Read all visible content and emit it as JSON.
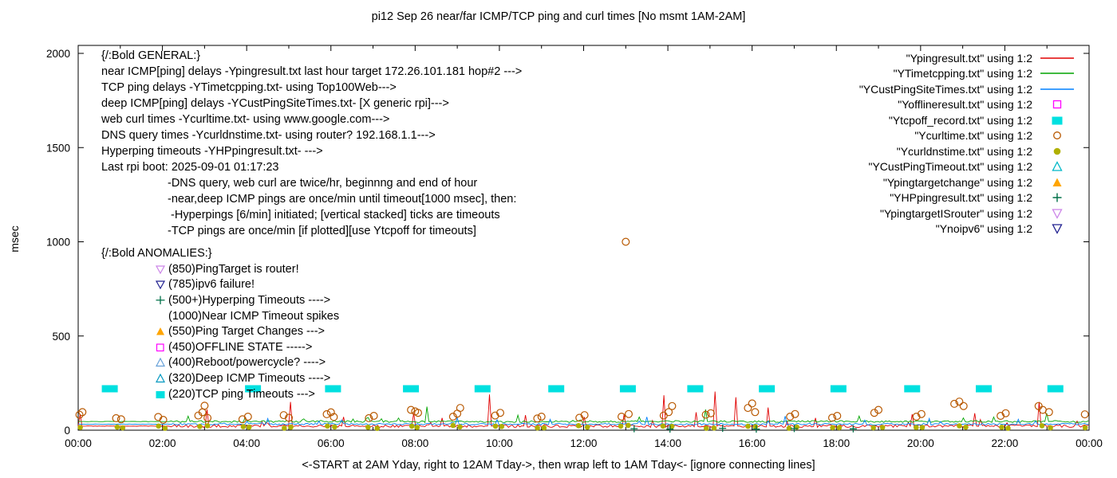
{
  "title": "pi12 Sep 26  near/far ICMP/TCP ping and curl times [No msmt 1AM-2AM]",
  "ylabel": "msec",
  "xlabel": "<-START at 2AM Yday, right to 12AM Tday->, then wrap left to 1AM Tday<- [ignore connecting lines]",
  "axes": {
    "yticks": [
      0,
      500,
      1000,
      1500,
      2000
    ],
    "xticks": [
      "00:00",
      "02:00",
      "04:00",
      "06:00",
      "08:00",
      "10:00",
      "12:00",
      "14:00",
      "16:00",
      "18:00",
      "20:00",
      "22:00",
      "00:00"
    ],
    "hours": 24,
    "grid": false
  },
  "legend": [
    {
      "label": "\"Ypingresult.txt\" using 1:2",
      "marker": "line",
      "color": "#e00000"
    },
    {
      "label": "\"YTimetcpping.txt\" using 1:2",
      "marker": "line",
      "color": "#00a400"
    },
    {
      "label": "\"YCustPingSiteTimes.txt\" using 1:2",
      "marker": "line",
      "color": "#0080ff"
    },
    {
      "label": "\"Yofflineresult.txt\" using 1:2",
      "marker": "square-open",
      "color": "#ff00ff"
    },
    {
      "label": "\"Ytcpoff_record.txt\" using 1:2",
      "marker": "square-filled",
      "color": "#00e0e0"
    },
    {
      "label": "\"Ycurltime.txt\" using 1:2",
      "marker": "circle-open",
      "color": "#b85800"
    },
    {
      "label": "\"Ycurldnstime.txt\" using 1:2",
      "marker": "circle-filled",
      "color": "#b0b000"
    },
    {
      "label": "\"YCustPingTimeout.txt\" using 1:2",
      "marker": "triangle-up-open",
      "color": "#00b8c8"
    },
    {
      "label": "\"Ypingtargetchange\" using 1:2",
      "marker": "triangle-up-filled",
      "color": "#ffa500"
    },
    {
      "label": "\"YHPpingresult.txt\" using 1:2",
      "marker": "plus",
      "color": "#007048"
    },
    {
      "label": "\"YpingtargetISrouter\" using 1:2",
      "marker": "triangle-down-open",
      "color": "#cc84e8"
    },
    {
      "label": "\"Ynoipv6\" using 1:2",
      "marker": "triangle-down-open",
      "color": "#202090"
    }
  ],
  "general": [
    {
      "text": "{/:Bold GENERAL:}",
      "indent": 0
    },
    {
      "text": "near ICMP[ping] delays -Ypingresult.txt last hour target 172.26.101.181 hop#2 --->",
      "indent": 0
    },
    {
      "text": "TCP ping delays -YTimetcpping.txt- using Top100Web--->",
      "indent": 0
    },
    {
      "text": "deep ICMP[ping] delays -YCustPingSiteTimes.txt- [X generic rpi]--->",
      "indent": 0
    },
    {
      "text": "web curl times -Ycurltime.txt- using www.google.com--->",
      "indent": 0
    },
    {
      "text": "DNS query times -Ycurldnstime.txt- using router? 192.168.1.1--->",
      "indent": 0
    },
    {
      "text": "Hyperping timeouts -YHPpingresult.txt- --->",
      "indent": 0
    },
    {
      "text": "Last rpi boot: 2025-09-01 01:17:23",
      "indent": 0
    },
    {
      "text": "-DNS query, web curl are twice/hr, beginnng and end of hour",
      "indent": 1
    },
    {
      "text": "-near,deep ICMP pings are once/min until timeout[1000 msec], then:",
      "indent": 1
    },
    {
      "text": " -Hyperpings [6/min] initiated; [vertical stacked] ticks are timeouts",
      "indent": 1
    },
    {
      "text": "-TCP pings are once/min [if plotted][use Ytcpoff for timeouts]",
      "indent": 1
    }
  ],
  "anomalies": {
    "heading": "{/:Bold ANOMALIES:}",
    "items": [
      {
        "marker": "triangle-down-open",
        "color": "#cc84e8",
        "text": "(850)PingTarget is router!"
      },
      {
        "marker": "triangle-down-open",
        "color": "#202090",
        "text": "(785)ipv6 failure!"
      },
      {
        "marker": "plus",
        "color": "#007048",
        "text": "(500+)Hyperping Timeouts ---->"
      },
      {
        "marker": "none",
        "color": "",
        "text": "(1000)Near ICMP Timeout spikes"
      },
      {
        "marker": "triangle-up-filled",
        "color": "#ffa500",
        "text": "(550)Ping Target Changes --->"
      },
      {
        "marker": "square-open",
        "color": "#ff00ff",
        "text": "(450)OFFLINE STATE ----->"
      },
      {
        "marker": "triangle-up-open",
        "color": "#66a0d8",
        "text": "(400)Reboot/powercycle? ---->"
      },
      {
        "marker": "triangle-up-open",
        "color": "#0098c0",
        "text": "(320)Deep ICMP Timeouts ---->"
      },
      {
        "marker": "square-filled",
        "color": "#00e0e0",
        "text": "(220)TCP ping Timeouts --->"
      }
    ]
  },
  "chart_data": {
    "type": "line+scatter",
    "x_unit": "hours_0_to_24",
    "ylim": [
      0,
      2000
    ],
    "noise_seed": 20250926,
    "lines": [
      {
        "name": "Ypingresult.txt",
        "color": "#e00000",
        "baseline": 22,
        "noise": 14,
        "flat_until": 2.2,
        "spikes": [
          [
            0.05,
            85
          ],
          [
            3.05,
            110
          ],
          [
            5.05,
            150
          ],
          [
            6.3,
            70
          ],
          [
            7.95,
            90
          ],
          [
            8.65,
            65
          ],
          [
            9.75,
            190
          ],
          [
            10.6,
            80
          ],
          [
            12.0,
            70
          ],
          [
            12.95,
            85
          ],
          [
            13.9,
            185
          ],
          [
            14.65,
            95
          ],
          [
            15.1,
            205
          ],
          [
            15.6,
            175
          ],
          [
            16.4,
            120
          ],
          [
            17.5,
            65
          ],
          [
            19.8,
            85
          ],
          [
            21.3,
            90
          ],
          [
            22.8,
            150
          ]
        ]
      },
      {
        "name": "YTimetcpping.txt",
        "color": "#00a400",
        "baseline": 46,
        "noise": 10,
        "flat_until": 2.2,
        "spikes": [
          [
            2.6,
            75
          ],
          [
            8.3,
            125
          ],
          [
            10.45,
            80
          ],
          [
            13.3,
            70
          ],
          [
            14.9,
            110
          ],
          [
            18.55,
            75
          ],
          [
            21.0,
            65
          ],
          [
            23.0,
            90
          ]
        ]
      },
      {
        "name": "YCustPingSiteTimes.txt",
        "color": "#0080ff",
        "baseline": 32,
        "noise": 9,
        "flat_until": 2.2,
        "spikes": [
          [
            4.5,
            62
          ],
          [
            9.0,
            66
          ],
          [
            11.2,
            58
          ],
          [
            13.5,
            70
          ],
          [
            16.8,
            75
          ],
          [
            20.2,
            62
          ],
          [
            22.3,
            58
          ]
        ]
      }
    ],
    "scatter": [
      {
        "name": "Ytcpoff_record.txt",
        "marker": "square-filled",
        "color": "#00e0e0",
        "y": 220,
        "marker_w": 20,
        "marker_h": 9,
        "hours": [
          0.75,
          4.15,
          6.05,
          7.9,
          9.6,
          11.35,
          13.05,
          14.65,
          16.35,
          18.05,
          19.8,
          21.5,
          23.2
        ]
      },
      {
        "name": "Ycurltime.txt",
        "marker": "circle-open",
        "color": "#b85800",
        "points": [
          [
            0.03,
            82
          ],
          [
            0.1,
            96
          ],
          [
            0.9,
            64
          ],
          [
            1.02,
            58
          ],
          [
            1.9,
            70
          ],
          [
            2.02,
            55
          ],
          [
            2.85,
            78
          ],
          [
            2.95,
            95
          ],
          [
            3.0,
            130
          ],
          [
            3.07,
            65
          ],
          [
            3.9,
            58
          ],
          [
            4.03,
            72
          ],
          [
            4.88,
            80
          ],
          [
            5.0,
            66
          ],
          [
            5.9,
            85
          ],
          [
            6.0,
            95
          ],
          [
            6.07,
            70
          ],
          [
            6.9,
            64
          ],
          [
            7.02,
            76
          ],
          [
            7.9,
            108
          ],
          [
            8.0,
            100
          ],
          [
            8.07,
            92
          ],
          [
            8.9,
            72
          ],
          [
            9.0,
            88
          ],
          [
            9.07,
            118
          ],
          [
            9.9,
            78
          ],
          [
            10.02,
            92
          ],
          [
            10.9,
            62
          ],
          [
            11.0,
            72
          ],
          [
            11.9,
            66
          ],
          [
            12.02,
            80
          ],
          [
            12.9,
            72
          ],
          [
            13.0,
            1000
          ],
          [
            13.07,
            86
          ],
          [
            13.9,
            78
          ],
          [
            14.02,
            96
          ],
          [
            14.1,
            128
          ],
          [
            14.9,
            82
          ],
          [
            15.02,
            90
          ],
          [
            15.9,
            118
          ],
          [
            16.0,
            142
          ],
          [
            16.07,
            96
          ],
          [
            16.9,
            72
          ],
          [
            17.02,
            86
          ],
          [
            17.9,
            66
          ],
          [
            18.02,
            76
          ],
          [
            18.9,
            92
          ],
          [
            19.0,
            108
          ],
          [
            19.9,
            72
          ],
          [
            20.02,
            86
          ],
          [
            20.8,
            140
          ],
          [
            20.92,
            152
          ],
          [
            21.02,
            128
          ],
          [
            21.9,
            76
          ],
          [
            22.02,
            90
          ],
          [
            22.8,
            128
          ],
          [
            22.9,
            108
          ],
          [
            23.05,
            96
          ],
          [
            23.9,
            84
          ]
        ]
      },
      {
        "name": "Ycurldnstime.txt",
        "marker": "circle-filled",
        "color": "#b0b000",
        "pattern": {
          "offsets": [
            0.07,
            0.9
          ],
          "hour_start": 0,
          "hour_end": 23,
          "y_base": 9,
          "y_jitter": 17
        }
      },
      {
        "name": "YHPpingresult.txt",
        "marker": "plus",
        "color": "#007048",
        "points": [
          [
            13.2,
            8
          ],
          [
            14.05,
            6
          ],
          [
            15.3,
            10
          ],
          [
            16.1,
            6
          ],
          [
            17.0,
            9
          ],
          [
            18.4,
            7
          ]
        ]
      },
      {
        "name": "Yofflineresult.txt",
        "marker": "square-open",
        "color": "#ff00ff",
        "points": []
      },
      {
        "name": "YCustPingTimeout.txt",
        "marker": "triangle-up-open",
        "color": "#00b8c8",
        "points": []
      },
      {
        "name": "Ypingtargetchange",
        "marker": "triangle-up-filled",
        "color": "#ffa500",
        "points": []
      },
      {
        "name": "YpingtargetISrouter",
        "marker": "triangle-down-open",
        "color": "#cc84e8",
        "points": []
      },
      {
        "name": "Ynoipv6",
        "marker": "triangle-down-open",
        "color": "#202090",
        "points": []
      }
    ]
  }
}
